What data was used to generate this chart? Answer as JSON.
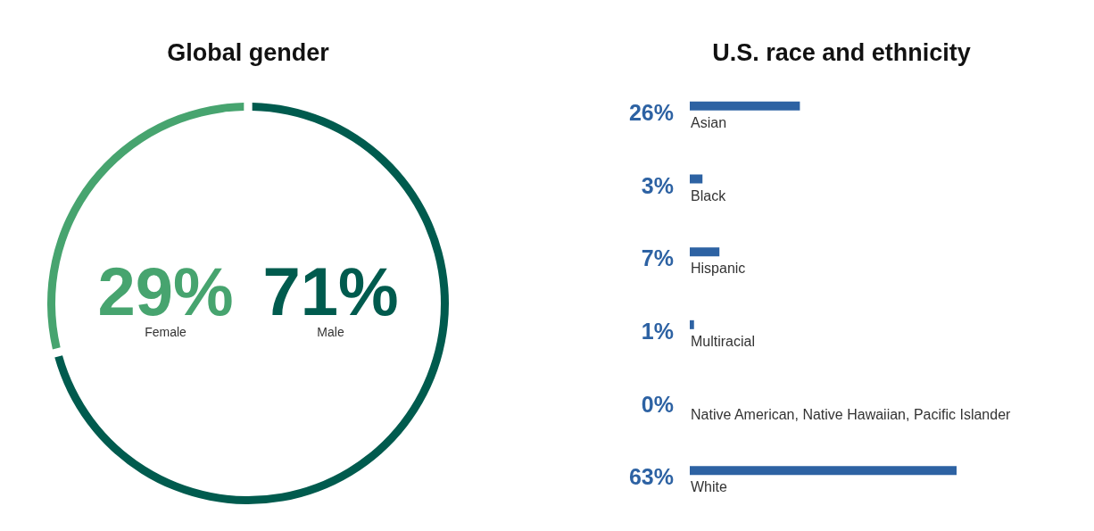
{
  "chart_data": [
    {
      "type": "donut",
      "title": "Global gender",
      "categories": [
        "Female",
        "Male"
      ],
      "values": [
        29,
        71
      ],
      "colors": [
        "#47a46f",
        "#005b4e"
      ],
      "value_labels": [
        "29%",
        "71%"
      ]
    },
    {
      "type": "bar",
      "title": "U.S. race and ethnicity",
      "orientation": "horizontal",
      "categories": [
        "Asian",
        "Black",
        "Hispanic",
        "Multiracial",
        "Native American, Native Hawaiian, Pacific Islander",
        "White"
      ],
      "values": [
        26,
        3,
        7,
        1,
        0,
        63
      ],
      "color": "#2d62a3",
      "value_labels": [
        "26%",
        "3%",
        "7%",
        "1%",
        "0%",
        "63%"
      ],
      "tick_labels": false
    }
  ]
}
